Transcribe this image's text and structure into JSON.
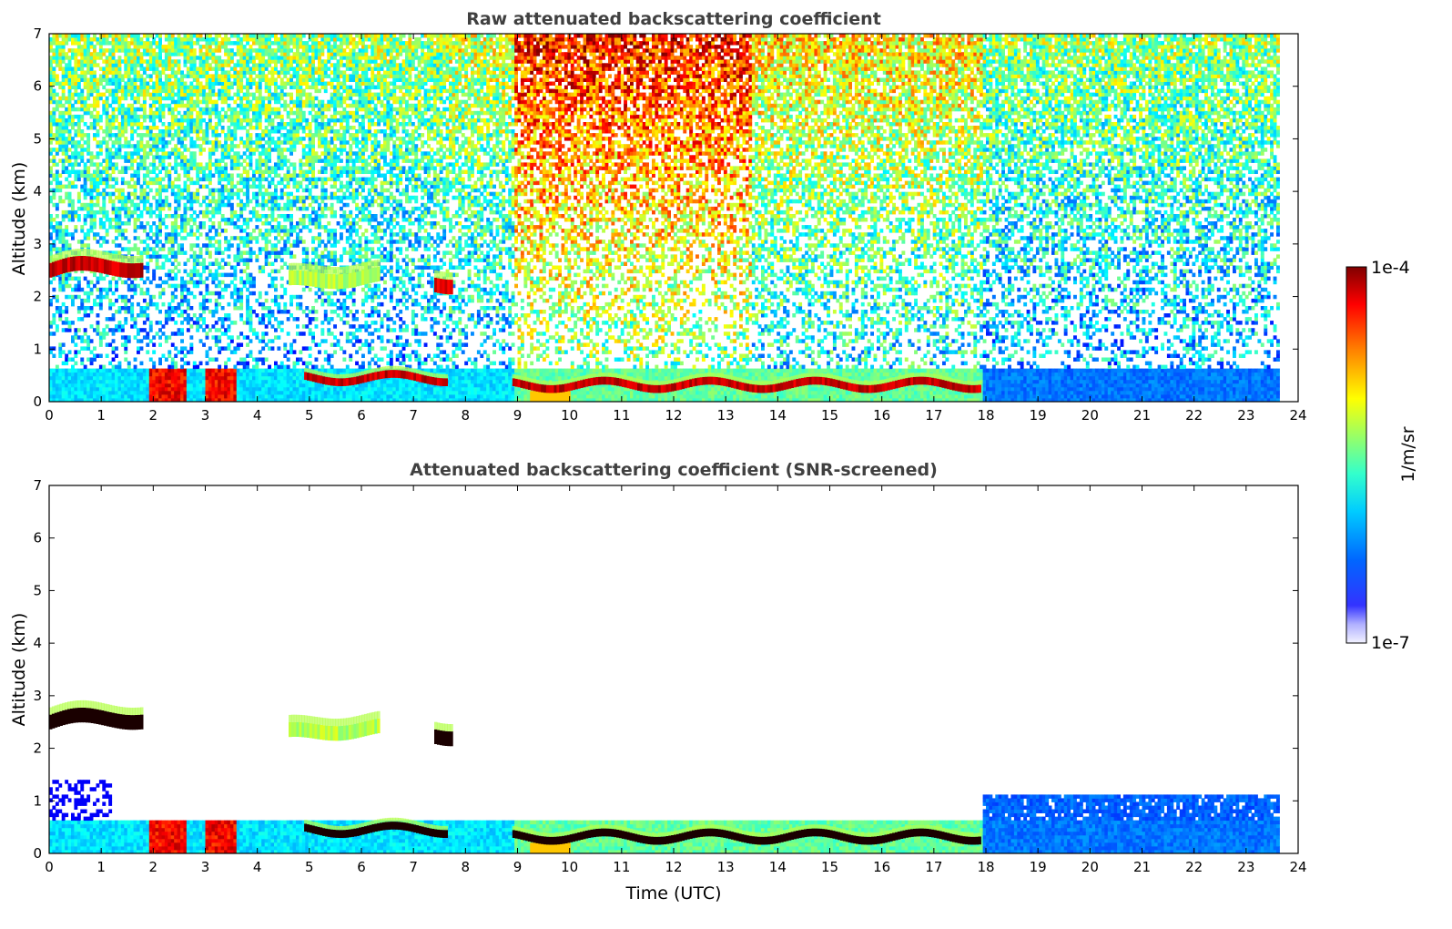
{
  "chart_data": [
    {
      "type": "heatmap",
      "title": "Raw attenuated backscattering coefficient",
      "xlabel": "",
      "ylabel": "Altitude (km)",
      "xlim": [
        0,
        24
      ],
      "ylim": [
        0,
        7
      ],
      "xticks": [
        0,
        1,
        2,
        3,
        4,
        5,
        6,
        7,
        8,
        9,
        10,
        11,
        12,
        13,
        14,
        15,
        16,
        17,
        18,
        19,
        20,
        21,
        22,
        23,
        24
      ],
      "yticks": [
        0,
        1,
        2,
        3,
        4,
        5,
        6,
        7
      ],
      "data_end_hour": 23.6,
      "noise_regions": [
        {
          "t_start": 0,
          "t_end": 7.6,
          "level": 0.5
        },
        {
          "t_start": 7.6,
          "t_end": 8.9,
          "level": 0.55
        },
        {
          "t_start": 8.9,
          "t_end": 13.5,
          "level": 0.82
        },
        {
          "t_start": 13.5,
          "t_end": 17.9,
          "level": 0.62
        },
        {
          "t_start": 17.9,
          "t_end": 23.6,
          "level": 0.5
        }
      ],
      "features": [
        {
          "name": "elevated aerosol layer",
          "t_start": 0.0,
          "t_end": 1.8,
          "alt_km": 2.5,
          "value": 0.98
        },
        {
          "name": "aerosol patches",
          "t_start": 4.6,
          "t_end": 6.3,
          "alt_km": 2.3,
          "value": 0.6
        },
        {
          "name": "aerosol plume",
          "t_start": 7.4,
          "t_end": 7.7,
          "alt_km": 2.3,
          "value": 0.95
        },
        {
          "name": "boundary layer top",
          "t_start": 4.9,
          "t_end": 7.6,
          "alt_km": 0.45,
          "value": 0.98
        },
        {
          "name": "boundary layer top",
          "t_start": 8.9,
          "t_end": 17.9,
          "alt_km": 0.32,
          "value": 0.98
        }
      ],
      "colormap": {
        "type": "jet",
        "vmin_label": "1e-7",
        "vmax_label": "1e-4"
      }
    },
    {
      "type": "heatmap",
      "title": "Attenuated backscattering coefficient (SNR-screened)",
      "xlabel": "Time (UTC)",
      "ylabel": "Altitude (km)",
      "xlim": [
        0,
        24
      ],
      "ylim": [
        0,
        7
      ],
      "xticks": [
        0,
        1,
        2,
        3,
        4,
        5,
        6,
        7,
        8,
        9,
        10,
        11,
        12,
        13,
        14,
        15,
        16,
        17,
        18,
        19,
        20,
        21,
        22,
        23,
        24
      ],
      "yticks": [
        0,
        1,
        2,
        3,
        4,
        5,
        6,
        7
      ],
      "data_end_hour": 23.6,
      "screened": true
    }
  ],
  "colorbar": {
    "label": "1/m/sr",
    "top_label": "1e-4",
    "bottom_label": "1e-7",
    "colors": [
      "#00007f",
      "#0000ff",
      "#007fff",
      "#00ffff",
      "#7fff7f",
      "#ffff00",
      "#ff7f00",
      "#ff0000",
      "#7f0000"
    ]
  }
}
